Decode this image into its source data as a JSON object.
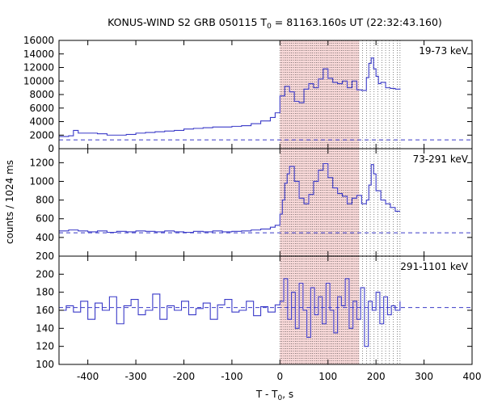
{
  "chart_data": {
    "type": "line",
    "title": {
      "prefix": "KONUS-WIND S2 GRB 050115 T",
      "sub": "0",
      "suffix": " = 81163.160s UT (22:32:43.160)"
    },
    "xlabel": {
      "prefix": "T - T",
      "sub": "0",
      "suffix": ", s"
    },
    "ylabel": "counts / 1024 ms",
    "xlim": [
      -460,
      400
    ],
    "xticks": [
      -400,
      -300,
      -200,
      -100,
      0,
      100,
      200,
      300,
      400
    ],
    "highlight_region": {
      "x_start": 0,
      "x_end": 165,
      "color": "#f8d8d8"
    },
    "dotted_lines_x": [
      0,
      4,
      8,
      12,
      16,
      20,
      24,
      28,
      32,
      36,
      40,
      44,
      48,
      52,
      56,
      60,
      64,
      68,
      72,
      76,
      80,
      84,
      88,
      92,
      96,
      100,
      104,
      108,
      112,
      116,
      120,
      124,
      128,
      132,
      136,
      140,
      144,
      148,
      152,
      156,
      160,
      164,
      172,
      180,
      188,
      196,
      204,
      212,
      220,
      228,
      236,
      244,
      250
    ],
    "line_color": "#3a3ac8",
    "panels": [
      {
        "band": "19-73 keV",
        "ylim": [
          0,
          16000
        ],
        "yticks": [
          0,
          2000,
          4000,
          6000,
          8000,
          10000,
          12000,
          14000,
          16000
        ],
        "background_level": 1300,
        "x": [
          -460,
          -440,
          -430,
          -420,
          -400,
          -380,
          -360,
          -340,
          -320,
          -300,
          -280,
          -260,
          -240,
          -220,
          -200,
          -180,
          -160,
          -140,
          -120,
          -100,
          -80,
          -60,
          -40,
          -20,
          -10,
          0,
          10,
          20,
          30,
          40,
          50,
          60,
          70,
          80,
          90,
          100,
          110,
          120,
          130,
          140,
          150,
          160,
          170,
          180,
          185,
          190,
          195,
          200,
          205,
          210,
          220,
          230,
          240,
          250
        ],
        "y": [
          1800,
          1900,
          2700,
          2300,
          2300,
          2200,
          2000,
          2000,
          2100,
          2300,
          2400,
          2500,
          2600,
          2700,
          2900,
          3000,
          3100,
          3200,
          3200,
          3300,
          3400,
          3700,
          4100,
          4600,
          5300,
          7800,
          9200,
          8400,
          7000,
          6800,
          8800,
          9600,
          9000,
          10300,
          11800,
          10400,
          9800,
          9600,
          10000,
          9000,
          10000,
          8700,
          8600,
          10500,
          12600,
          13400,
          11800,
          10700,
          9600,
          9800,
          9000,
          8900,
          8800,
          8900
        ]
      },
      {
        "band": "73-291 keV",
        "ylim": [
          200,
          1350
        ],
        "yticks": [
          200,
          400,
          600,
          800,
          1000,
          1200
        ],
        "background_level": 450,
        "x": [
          -460,
          -440,
          -420,
          -400,
          -380,
          -360,
          -340,
          -320,
          -300,
          -280,
          -260,
          -240,
          -220,
          -200,
          -180,
          -160,
          -140,
          -120,
          -100,
          -80,
          -60,
          -40,
          -20,
          -10,
          0,
          5,
          10,
          15,
          20,
          30,
          40,
          50,
          60,
          70,
          80,
          90,
          100,
          110,
          120,
          130,
          140,
          150,
          160,
          170,
          180,
          185,
          190,
          195,
          200,
          210,
          220,
          230,
          240,
          250
        ],
        "y": [
          470,
          480,
          470,
          460,
          470,
          455,
          465,
          460,
          470,
          465,
          460,
          470,
          460,
          455,
          465,
          460,
          470,
          460,
          465,
          470,
          480,
          490,
          510,
          530,
          650,
          800,
          980,
          1080,
          1160,
          1000,
          820,
          760,
          860,
          1000,
          1120,
          1190,
          1040,
          930,
          870,
          840,
          760,
          820,
          850,
          760,
          800,
          960,
          1180,
          1080,
          900,
          800,
          760,
          720,
          680,
          680
        ]
      },
      {
        "band": "291-1101 keV",
        "ylim": [
          100,
          220
        ],
        "yticks": [
          100,
          120,
          140,
          160,
          180,
          200
        ],
        "background_level": 163,
        "x": [
          -460,
          -445,
          -430,
          -415,
          -400,
          -385,
          -370,
          -355,
          -340,
          -325,
          -310,
          -295,
          -280,
          -265,
          -250,
          -235,
          -220,
          -205,
          -190,
          -175,
          -160,
          -145,
          -130,
          -115,
          -100,
          -85,
          -70,
          -55,
          -40,
          -25,
          -10,
          0,
          8,
          16,
          24,
          32,
          40,
          48,
          56,
          64,
          72,
          80,
          88,
          96,
          104,
          112,
          120,
          128,
          136,
          144,
          152,
          160,
          168,
          176,
          184,
          192,
          200,
          208,
          216,
          224,
          232,
          240,
          250
        ],
        "y": [
          160,
          165,
          158,
          170,
          150,
          168,
          160,
          175,
          145,
          165,
          172,
          155,
          160,
          178,
          150,
          165,
          160,
          170,
          155,
          162,
          168,
          150,
          166,
          172,
          158,
          160,
          170,
          154,
          164,
          158,
          166,
          170,
          195,
          150,
          180,
          140,
          190,
          160,
          130,
          185,
          155,
          175,
          145,
          190,
          160,
          135,
          175,
          165,
          195,
          140,
          170,
          150,
          185,
          120,
          170,
          160,
          180,
          145,
          175,
          155,
          165,
          160,
          170
        ]
      }
    ]
  }
}
